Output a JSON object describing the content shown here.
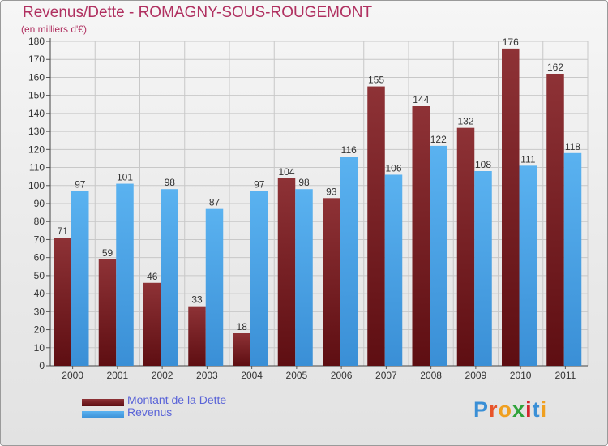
{
  "title": "Revenus/Dette - ROMAGNY-SOUS-ROUGEMONT",
  "subtitle": "(en milliers d'€)",
  "brand": "Proxiti",
  "colors": {
    "dette": "#7a1e22",
    "revenus": "#4aa3e8",
    "title": "#b03060",
    "legend_text": "#5a64d8"
  },
  "chart_data": {
    "type": "bar",
    "title": "Revenus/Dette - ROMAGNY-SOUS-ROUGEMONT",
    "ylabel": "(en milliers d'€)",
    "xlabel": "",
    "categories": [
      "2000",
      "2001",
      "2002",
      "2003",
      "2004",
      "2005",
      "2006",
      "2007",
      "2008",
      "2009",
      "2010",
      "2011"
    ],
    "series": [
      {
        "name": "Montant de la Dette",
        "values": [
          71,
          59,
          46,
          33,
          18,
          104,
          93,
          155,
          144,
          132,
          176,
          162
        ]
      },
      {
        "name": "Revenus",
        "values": [
          97,
          101,
          98,
          87,
          97,
          98,
          116,
          106,
          122,
          108,
          111,
          118
        ]
      }
    ],
    "ylim": [
      0,
      180
    ],
    "yticks": [
      0,
      10,
      20,
      30,
      40,
      50,
      60,
      70,
      80,
      90,
      100,
      110,
      120,
      130,
      140,
      150,
      160,
      170,
      180
    ],
    "grid": true,
    "legend": "bottom-left"
  }
}
